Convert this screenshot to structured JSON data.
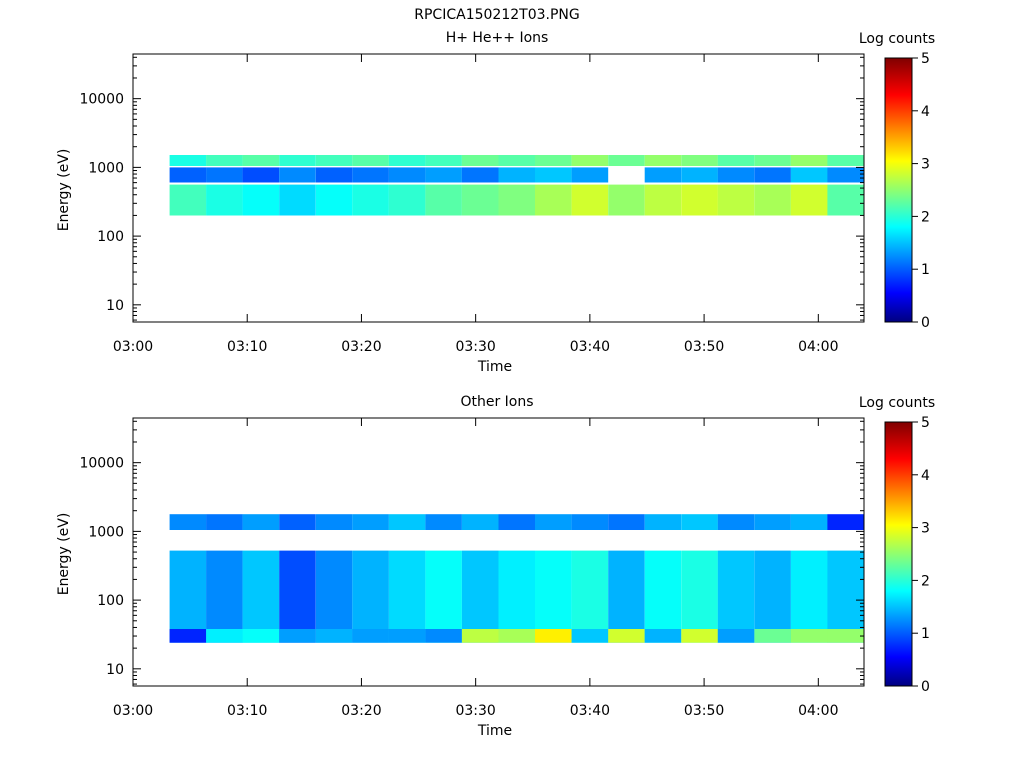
{
  "figure_title": "RPCICA150212T03.PNG",
  "chart_data": [
    {
      "type": "heatmap",
      "title": "H+ He++ Ions",
      "xlabel": "Time",
      "ylabel": "Energy (eV)",
      "x_ticks": [
        "03:00",
        "03:10",
        "03:20",
        "03:30",
        "03:40",
        "03:50",
        "04:00"
      ],
      "y_ticks": [
        "10",
        "100",
        "1000",
        "10000"
      ],
      "x_range_minutes": [
        0,
        64
      ],
      "y_range_log10": [
        0.75,
        4.65
      ],
      "y_scale": "log",
      "colorbar": {
        "label": "Log counts",
        "ticks": [
          "0",
          "1",
          "2",
          "3",
          "4",
          "5"
        ],
        "range": [
          0,
          5
        ]
      },
      "time_columns_minutes": [
        3.2,
        6.4,
        9.6,
        12.8,
        16.0,
        19.2,
        22.4,
        25.6,
        28.8,
        32.0,
        35.2,
        38.4,
        41.6,
        44.8,
        48.0,
        51.2,
        54.4,
        57.6,
        60.8
      ],
      "bands": [
        {
          "energy_range_log10": [
            3.02,
            3.18
          ],
          "log_counts_by_column": [
            2.0,
            2.2,
            2.3,
            2.1,
            2.2,
            2.3,
            2.1,
            2.2,
            2.4,
            2.3,
            2.4,
            2.6,
            2.4,
            2.6,
            2.5,
            2.3,
            2.4,
            2.6,
            2.3
          ]
        },
        {
          "energy_range_log10": [
            2.78,
            3.0
          ],
          "log_counts_by_column": [
            1.1,
            1.2,
            1.0,
            1.3,
            1.1,
            1.2,
            1.3,
            1.4,
            1.2,
            1.5,
            1.6,
            1.4,
            0.0,
            1.4,
            1.5,
            1.3,
            1.2,
            1.6,
            1.3
          ]
        },
        {
          "energy_range_log10": [
            2.3,
            2.75
          ],
          "log_counts_by_column": [
            2.2,
            2.0,
            1.9,
            1.7,
            1.9,
            2.0,
            2.1,
            2.3,
            2.4,
            2.5,
            2.7,
            2.9,
            2.6,
            2.8,
            2.9,
            2.8,
            2.7,
            2.9,
            2.3
          ]
        }
      ]
    },
    {
      "type": "heatmap",
      "title": "Other Ions",
      "xlabel": "Time",
      "ylabel": "Energy (eV)",
      "x_ticks": [
        "03:00",
        "03:10",
        "03:20",
        "03:30",
        "03:40",
        "03:50",
        "04:00"
      ],
      "y_ticks": [
        "10",
        "100",
        "1000",
        "10000"
      ],
      "x_range_minutes": [
        0,
        64
      ],
      "y_range_log10": [
        0.75,
        4.65
      ],
      "y_scale": "log",
      "colorbar": {
        "label": "Log counts",
        "ticks": [
          "0",
          "1",
          "2",
          "3",
          "4",
          "5"
        ],
        "range": [
          0,
          5
        ]
      },
      "time_columns_minutes": [
        3.2,
        6.4,
        9.6,
        12.8,
        16.0,
        19.2,
        22.4,
        25.6,
        28.8,
        32.0,
        35.2,
        38.4,
        41.6,
        44.8,
        48.0,
        51.2,
        54.4,
        57.6,
        60.8
      ],
      "bands": [
        {
          "energy_range_log10": [
            3.02,
            3.25
          ],
          "log_counts_by_column": [
            1.3,
            1.2,
            1.4,
            1.1,
            1.3,
            1.4,
            1.6,
            1.3,
            1.5,
            1.2,
            1.4,
            1.3,
            1.2,
            1.5,
            1.6,
            1.3,
            1.4,
            1.5,
            0.8
          ]
        },
        {
          "energy_range_log10": [
            1.38,
            2.72
          ],
          "log_counts_by_column": [
            1.5,
            1.3,
            1.6,
            1.0,
            1.3,
            1.5,
            1.7,
            1.9,
            1.6,
            1.8,
            1.9,
            2.0,
            1.5,
            1.9,
            2.0,
            1.6,
            1.5,
            1.8,
            1.6
          ]
        },
        {
          "energy_range_log10": [
            1.38,
            1.58
          ],
          "log_counts_by_column": [
            0.8,
            1.8,
            1.9,
            1.4,
            1.5,
            1.4,
            1.4,
            1.3,
            2.8,
            2.7,
            3.2,
            1.6,
            2.9,
            1.5,
            2.9,
            1.4,
            2.4,
            2.6,
            2.6
          ]
        }
      ]
    }
  ]
}
